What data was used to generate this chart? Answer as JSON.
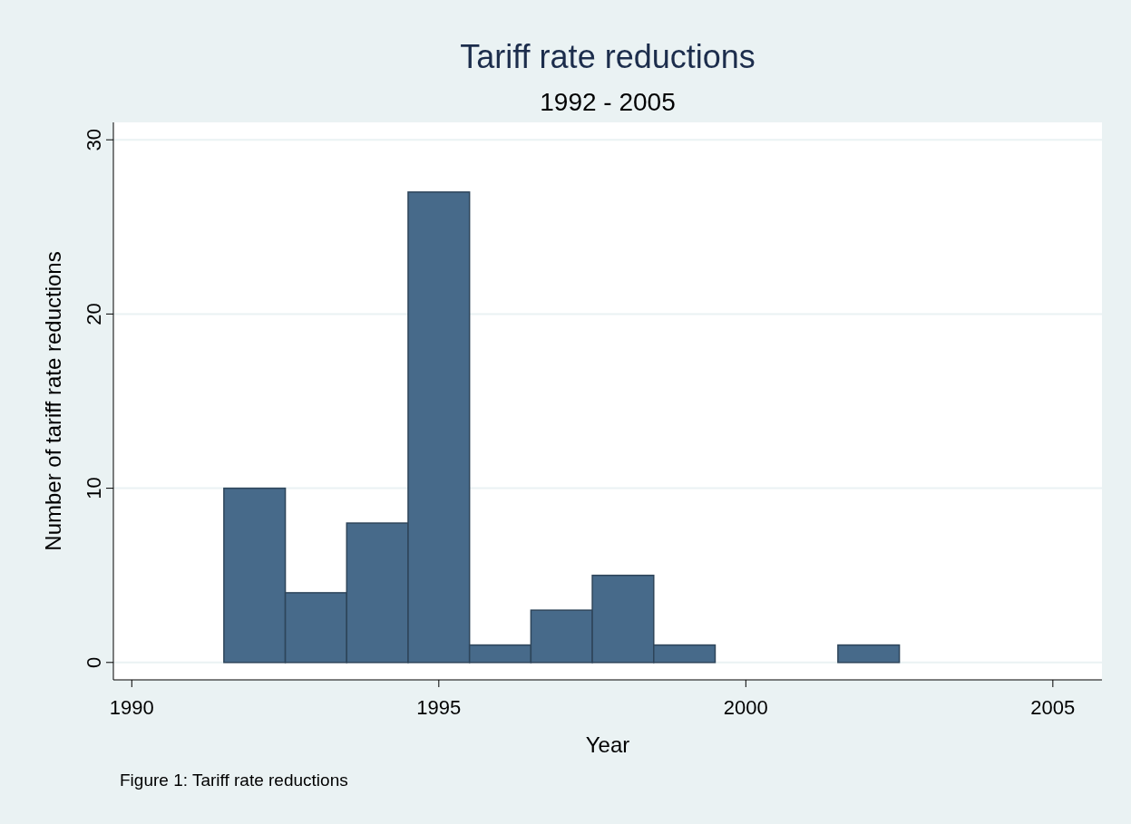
{
  "chart_data": {
    "type": "histogram",
    "title": "Tariff rate reductions",
    "subtitle": "1992 - 2005",
    "xlabel": "Year",
    "ylabel": "Number of tariff rate reductions",
    "bins": [
      1991.5,
      1992.5,
      1993.5,
      1994.5,
      1995.5,
      1996.5,
      1997.5,
      1998.5,
      1999.5,
      2000.5,
      2001.5,
      2002.5
    ],
    "values": [
      10,
      4,
      8,
      27,
      1,
      3,
      5,
      1,
      0,
      0,
      1
    ],
    "color": "#476a8a",
    "xlim": [
      1989.7,
      2005.8
    ],
    "xticks": [
      1990,
      1995,
      2000,
      2005
    ],
    "ylim": [
      -1,
      31
    ],
    "yticks": [
      0,
      10,
      20,
      30
    ],
    "grid": "y",
    "annotations": [
      "Figure 1: Tariff rate reductions"
    ]
  }
}
